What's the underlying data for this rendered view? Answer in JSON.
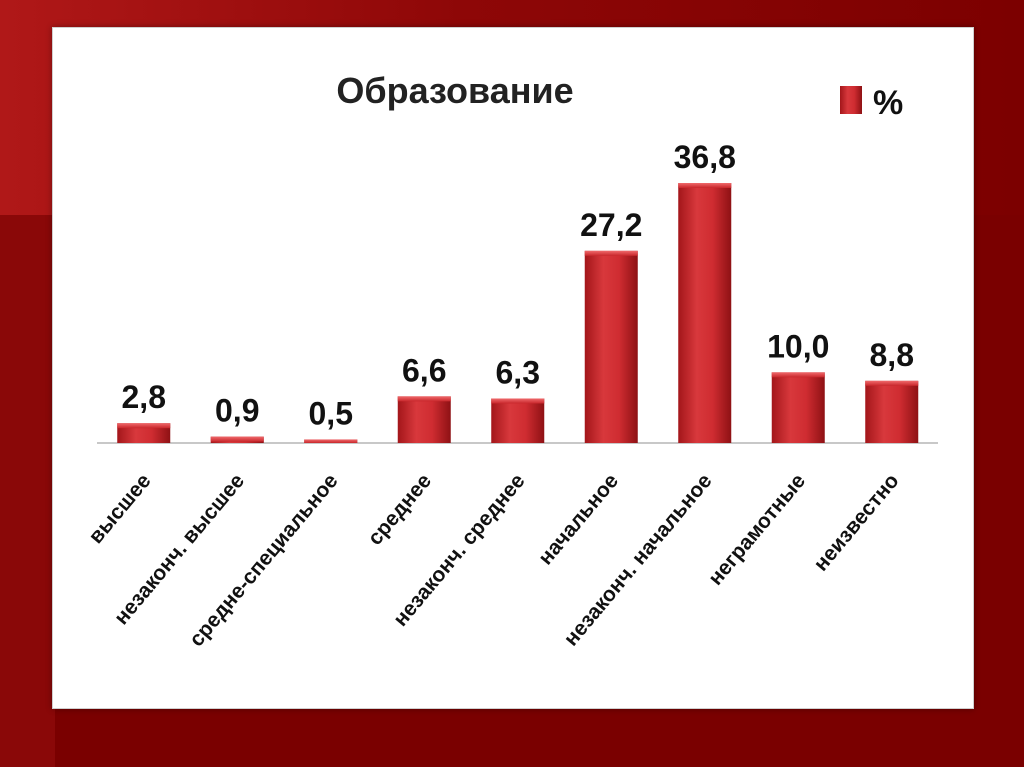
{
  "chart_data": {
    "type": "bar",
    "title": "Образование",
    "legend": {
      "label": "%",
      "position": "top-right",
      "color": "#c8262b"
    },
    "categories": [
      "высшее",
      "незаконч. высшее",
      "средне-специальное",
      "среднее",
      "незаконч. среднее",
      "начальное",
      "незаконч. начальное",
      "неграмотные",
      "неизвестно"
    ],
    "series": [
      {
        "name": "%",
        "values": [
          2.8,
          0.9,
          0.5,
          6.6,
          6.3,
          27.2,
          36.8,
          10.0,
          8.8
        ],
        "labels": [
          "2,8",
          "0,9",
          "0,5",
          "6,6",
          "6,3",
          "27,2",
          "36,8",
          "10,0",
          "8,8"
        ]
      }
    ],
    "ylim": [
      0,
      36.8
    ],
    "grid": false,
    "colors": {
      "bar": "#c8262b",
      "bar_dark": "#8e1114",
      "background": "#7a0000"
    }
  }
}
